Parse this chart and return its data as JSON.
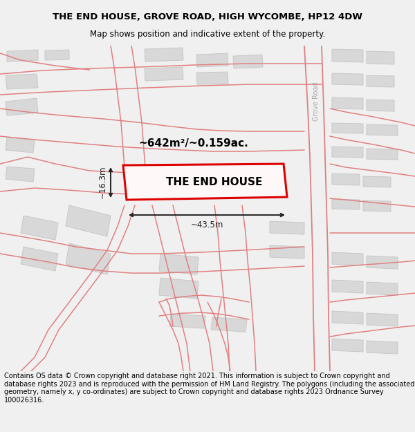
{
  "title_line1": "THE END HOUSE, GROVE ROAD, HIGH WYCOMBE, HP12 4DW",
  "title_line2": "Map shows position and indicative extent of the property.",
  "property_label": "THE END HOUSE",
  "area_label": "~642m²/~0.159ac.",
  "width_label": "~43.5m",
  "height_label": "~16.3m",
  "road_label": "Grove Road",
  "footer": "Contains OS data © Crown copyright and database right 2021. This information is subject to Crown copyright and database rights 2023 and is reproduced with the permission of HM Land Registry. The polygons (including the associated geometry, namely x, y co-ordinates) are subject to Crown copyright and database rights 2023 Ordnance Survey 100026316.",
  "bg_color": "#f0f0f0",
  "map_bg": "#ffffff",
  "road_line_color": "#e08080",
  "building_fill": "#d8d8d8",
  "building_edge": "#c8c8c8",
  "property_fill": "#fff8f8",
  "property_edge": "#dd0000",
  "dim_color": "#222222",
  "title_fontsize": 9.5,
  "subtitle_fontsize": 8.5,
  "footer_fontsize": 7.0
}
